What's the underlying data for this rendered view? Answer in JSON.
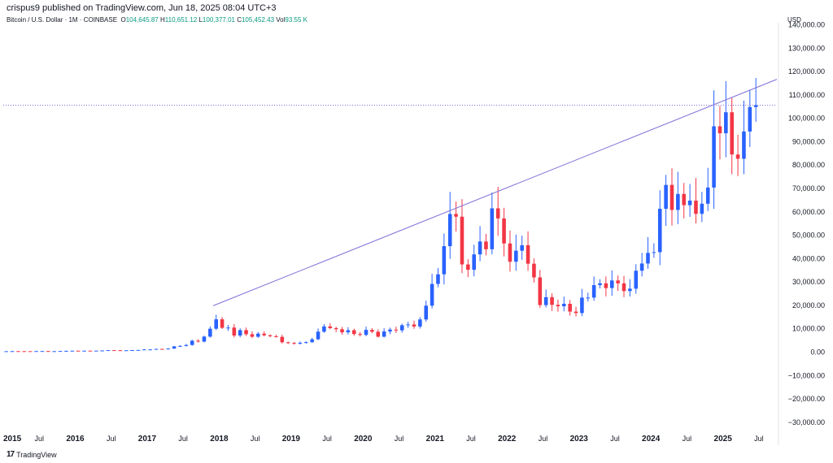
{
  "header": {
    "publish_line": "crispus9 published on TradingView.com, Jun 18, 2025 08:04 UTC+3"
  },
  "legend": {
    "symbol": "Bitcoin / U.S. Dollar · 1M · COINBASE",
    "open_label": "O",
    "open": "104,645.87",
    "high_label": "H",
    "high": "110,651.12",
    "low_label": "L",
    "low": "100,377.01",
    "close_label": "C",
    "close": "105,452.43",
    "vol_label": "Vol",
    "vol": "93.55 K"
  },
  "currency": "USD",
  "brand": {
    "logo": "17",
    "name": "TradingView"
  },
  "colors": {
    "up": "#2962ff",
    "down": "#f23645",
    "trend": "#7e6fd8",
    "dotted": "#7e6fd8",
    "axis_text": "#131722",
    "grid": "#e6e6e6"
  },
  "chart_data": {
    "type": "candlestick",
    "title": "Bitcoin / U.S. Dollar · 1M · COINBASE",
    "ylabel": "USD",
    "ylim": [
      -33000,
      140000
    ],
    "xlim": [
      2015.0,
      2025.75
    ],
    "y_ticks": [
      -30000,
      -20000,
      -10000,
      0,
      10000,
      20000,
      30000,
      40000,
      50000,
      60000,
      70000,
      80000,
      90000,
      100000,
      110000,
      120000,
      130000,
      140000
    ],
    "y_tick_labels": [
      "−30,000.00",
      "−20,000.00",
      "−10,000.00",
      "0.00",
      "10,000.00",
      "20,000.00",
      "30,000.00",
      "40,000.00",
      "50,000.00",
      "60,000.00",
      "70,000.00",
      "80,000.00",
      "90,000.00",
      "100,000.00",
      "110,000.00",
      "120,000.00",
      "130,000.00",
      "140,000.00"
    ],
    "x_ticks": [
      {
        "label": "2015",
        "t": 2015.0,
        "bold": true
      },
      {
        "label": "Jul",
        "t": 2015.5,
        "bold": false
      },
      {
        "label": "2016",
        "t": 2016.0,
        "bold": true
      },
      {
        "label": "Jul",
        "t": 2016.5,
        "bold": false
      },
      {
        "label": "2017",
        "t": 2017.0,
        "bold": true
      },
      {
        "label": "Jul",
        "t": 2017.5,
        "bold": false
      },
      {
        "label": "2018",
        "t": 2018.0,
        "bold": true
      },
      {
        "label": "Jul",
        "t": 2018.5,
        "bold": false
      },
      {
        "label": "2019",
        "t": 2019.0,
        "bold": true
      },
      {
        "label": "Jul",
        "t": 2019.5,
        "bold": false
      },
      {
        "label": "2020",
        "t": 2020.0,
        "bold": true
      },
      {
        "label": "Jul",
        "t": 2020.5,
        "bold": false
      },
      {
        "label": "2021",
        "t": 2021.0,
        "bold": true
      },
      {
        "label": "Jul",
        "t": 2021.5,
        "bold": false
      },
      {
        "label": "2022",
        "t": 2022.0,
        "bold": true
      },
      {
        "label": "Jul",
        "t": 2022.5,
        "bold": false
      },
      {
        "label": "2023",
        "t": 2023.0,
        "bold": true
      },
      {
        "label": "Jul",
        "t": 2023.5,
        "bold": false
      },
      {
        "label": "2024",
        "t": 2024.0,
        "bold": true
      },
      {
        "label": "Jul",
        "t": 2024.5,
        "bold": false
      },
      {
        "label": "2025",
        "t": 2025.0,
        "bold": true
      },
      {
        "label": "Jul",
        "t": 2025.5,
        "bold": false
      }
    ],
    "current_price_line": 105452,
    "trendline": [
      {
        "t": 2017.917,
        "price": 19666
      },
      {
        "t": 2025.75,
        "price": 116500
      }
    ],
    "start": "2015-01",
    "close_series": [
      217,
      254,
      244,
      236,
      230,
      263,
      285,
      230,
      236,
      313,
      377,
      430,
      369,
      437,
      416,
      448,
      531,
      673,
      624,
      575,
      609,
      698,
      742,
      963,
      970,
      1189,
      1071,
      1347,
      2286,
      2480,
      2875,
      4703,
      4338,
      6468,
      9837,
      13860,
      10221,
      10326,
      6923,
      9240,
      7494,
      6404,
      7730,
      7033,
      6626,
      6371,
      4040,
      3742,
      3437,
      3813,
      4103,
      5321,
      8574,
      10817,
      10085,
      9630,
      8293,
      9199,
      7569,
      7194,
      9350,
      8543,
      6438,
      8658,
      9461,
      9138,
      11335,
      11655,
      10784,
      13804,
      19700,
      28990,
      33114,
      45137,
      58918,
      57750,
      37332,
      35040,
      41626,
      47130,
      43823,
      61318,
      57005,
      46306,
      38483,
      43194,
      45538,
      37644,
      31792,
      19942,
      23336,
      20050,
      19423,
      20495,
      17168,
      16547,
      23139,
      23147,
      28478,
      29268,
      27219,
      30472,
      29232,
      25940,
      26962,
      34639,
      37723,
      42265,
      42580,
      61130,
      71333,
      60636,
      67472,
      62678,
      64619,
      58969,
      63301,
      70215,
      96405,
      93429,
      102412,
      84350,
      82514,
      94172,
      104638,
      105452
    ],
    "ohlc_note": "Monthly candles; open of each month equals prior close; wicks approximate highs/lows read from chart"
  }
}
